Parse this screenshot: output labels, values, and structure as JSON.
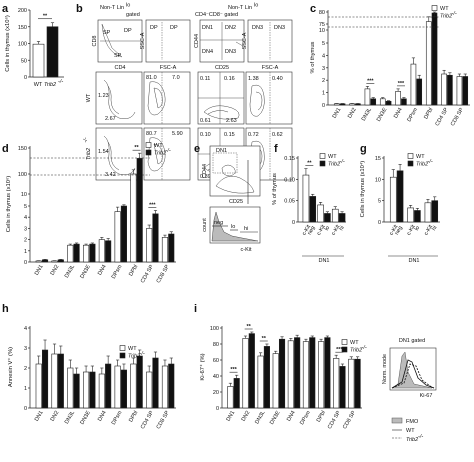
{
  "colors": {
    "wt": "#ffffff",
    "ko": "#111111",
    "edge": "#222222"
  },
  "legend": {
    "wt": "WT",
    "ko": "Trib2",
    "ko_sup": "-/-"
  },
  "chart_data": [
    {
      "id": "a",
      "panel_label": "a",
      "type": "bar",
      "ylabel": "Cells in thymus (x10⁶)",
      "ylim": [
        0,
        200
      ],
      "yticks": [
        "0",
        "50",
        "100",
        "150",
        "200"
      ],
      "categories": [
        "WT",
        "Trib2"
      ],
      "category_sup": [
        "",
        "-/-"
      ],
      "values": [
        98,
        150
      ],
      "errors": [
        8,
        12
      ],
      "sig": [
        "**"
      ]
    },
    {
      "id": "b",
      "panel_label": "b",
      "type": "table",
      "header_left": "Non-T Lin",
      "header_left_sup": "lo",
      "header_left_2": "gated",
      "header_right": "Non-T Lin",
      "header_right_sup": "lo",
      "header_right_2": "CD4⁻CD8⁻ gated",
      "schema_axes": [
        "CD8",
        "CD4",
        "SSC-A",
        "FSC-A",
        "CD44",
        "CD25",
        "SSC-A",
        "FSC-A"
      ],
      "schema_gates": [
        "DP",
        "SP",
        "SP",
        "DP",
        "DN1",
        "DN2",
        "DN4",
        "DN3",
        "DN3",
        "DN3"
      ],
      "row_labels": [
        "WT",
        "Trib2"
      ],
      "row_label_sup": [
        "",
        "-/-"
      ],
      "rows": [
        {
          "cd4cd8": [
            "1.23",
            "2.67"
          ],
          "dp_size": [
            "81.0",
            "7.0"
          ],
          "cd44cd25": [
            "0.11",
            "0.61",
            "0.16",
            "2.63"
          ],
          "dn3_size": [
            "1.38",
            "0.40"
          ]
        },
        {
          "cd4cd8": [
            "1.54",
            "3.42"
          ],
          "dp_size": [
            "80.7",
            "5.90"
          ],
          "cd44cd25": [
            "0.10",
            "0.39",
            "0.15",
            "2.06"
          ],
          "dn3_size": [
            "0.72",
            "0.62"
          ]
        }
      ]
    },
    {
      "id": "c",
      "panel_label": "c",
      "type": "bar",
      "ylabel": "% of thymus",
      "yticks": [
        "0",
        "1",
        "2",
        "3",
        "4",
        "5",
        "10",
        "75",
        "80"
      ],
      "broken_axis": true,
      "categories": [
        "DN1",
        "DN2",
        "DN3L",
        "DN3E",
        "DN4",
        "DPsm",
        "DPbl",
        "CD4 SP",
        "CD8 SP"
      ],
      "series": [
        {
          "name": "WT",
          "values": [
            0.1,
            0.1,
            1.3,
            0.5,
            1.1,
            3.3,
            76,
            2.5,
            2.3
          ],
          "errors": [
            0.02,
            0.02,
            0.2,
            0.1,
            0.2,
            0.5,
            2,
            0.3,
            0.2
          ]
        },
        {
          "name": "Trib2",
          "values": [
            0.1,
            0.1,
            0.5,
            0.3,
            0.5,
            2.1,
            78,
            2.4,
            2.3
          ],
          "errors": [
            0.02,
            0.02,
            0.1,
            0.05,
            0.1,
            0.3,
            2,
            0.2,
            0.2
          ]
        }
      ],
      "sig": [
        {
          "category": "DN3L",
          "label": "***"
        },
        {
          "category": "DN4",
          "label": "***"
        }
      ]
    },
    {
      "id": "d",
      "panel_label": "d",
      "type": "bar",
      "ylabel": "Cells in thymus (x10⁶)",
      "yticks": [
        "0",
        "1",
        "2",
        "3",
        "4",
        "5",
        "10",
        "100",
        "150"
      ],
      "broken_axis": true,
      "categories": [
        "DN1",
        "DN2",
        "DN3L",
        "DN3E",
        "DN4",
        "DPsm",
        "DPbl",
        "CD4 SP",
        "CD8 SP"
      ],
      "series": [
        {
          "name": "WT",
          "values": [
            0.1,
            0.1,
            1.5,
            1.5,
            2.0,
            4.5,
            100,
            3.0,
            2.2
          ],
          "errors": [
            0.02,
            0.02,
            0.1,
            0.1,
            0.2,
            0.4,
            8,
            0.3,
            0.2
          ]
        },
        {
          "name": "Trib2",
          "values": [
            0.2,
            0.2,
            1.6,
            1.6,
            1.9,
            5.0,
            130,
            4.3,
            2.5
          ],
          "errors": [
            0.03,
            0.03,
            0.1,
            0.1,
            0.2,
            0.5,
            10,
            0.3,
            0.2
          ]
        }
      ],
      "sig": [
        {
          "category": "DPbl",
          "label": "**"
        },
        {
          "category": "CD4 SP",
          "label": "***"
        }
      ]
    },
    {
      "id": "e",
      "panel_label": "e",
      "type": "table",
      "gate_label": "DN1",
      "axes": [
        "CD44",
        "CD25",
        "count",
        "c-Kit"
      ],
      "hist_gates": [
        "neg",
        "lo",
        "hi"
      ]
    },
    {
      "id": "f",
      "panel_label": "f",
      "type": "bar",
      "ylabel": "% of thymus",
      "ylim": [
        0,
        0.15
      ],
      "yticks": [
        "0",
        "0.05",
        "0.10",
        "0.15"
      ],
      "categories": [
        "c-Kit",
        "c-Kit",
        "c-Kit"
      ],
      "category_sup": [
        "neg",
        "lo",
        "hi"
      ],
      "group_label": "DN1",
      "series": [
        {
          "name": "WT",
          "values": [
            0.11,
            0.04,
            0.03
          ],
          "errors": [
            0.015,
            0.006,
            0.006
          ]
        },
        {
          "name": "Trib2",
          "values": [
            0.06,
            0.02,
            0.02
          ],
          "errors": [
            0.005,
            0.004,
            0.004
          ]
        }
      ],
      "sig": [
        {
          "category": 0,
          "label": "**"
        }
      ]
    },
    {
      "id": "g",
      "panel_label": "g",
      "type": "bar",
      "ylabel": "Cells in thymus (x10⁴)",
      "ylim": [
        0,
        15
      ],
      "yticks": [
        "0",
        "5",
        "10",
        "15"
      ],
      "categories": [
        "c-Kit",
        "c-Kit",
        "c-Kit"
      ],
      "category_sup": [
        "neg",
        "lo",
        "hi"
      ],
      "group_label": "DN1",
      "series": [
        {
          "name": "WT",
          "values": [
            10.5,
            3.3,
            4.5
          ],
          "errors": [
            1.8,
            0.6,
            0.8
          ]
        },
        {
          "name": "Trib2",
          "values": [
            12.0,
            2.7,
            5.0
          ],
          "errors": [
            1.5,
            0.5,
            0.9
          ]
        }
      ]
    },
    {
      "id": "h",
      "panel_label": "h",
      "type": "bar",
      "ylabel": "Annexin V⁺ (%)",
      "ylim": [
        0,
        4
      ],
      "yticks": [
        "0",
        "1",
        "2",
        "3",
        "4"
      ],
      "categories": [
        "DN1",
        "DN2",
        "DN3L",
        "DN3E",
        "DN4",
        "DPsm",
        "DPbl",
        "CD4 SP",
        "CD8 SP"
      ],
      "series": [
        {
          "name": "WT",
          "values": [
            2.2,
            2.7,
            2.0,
            1.8,
            1.7,
            2.1,
            2.2,
            1.8,
            2.1
          ],
          "errors": [
            0.4,
            0.5,
            0.4,
            0.3,
            0.3,
            0.3,
            0.3,
            0.3,
            0.3
          ]
        },
        {
          "name": "Trib2",
          "values": [
            2.9,
            2.7,
            1.7,
            1.8,
            2.2,
            1.9,
            2.6,
            2.5,
            2.2
          ],
          "errors": [
            0.5,
            0.4,
            0.3,
            0.3,
            0.4,
            0.3,
            0.3,
            0.3,
            0.3
          ]
        }
      ]
    },
    {
      "id": "i",
      "panel_label": "i",
      "type": "bar",
      "ylabel": "Ki-67⁺ (%)",
      "ylim": [
        0,
        100
      ],
      "yticks": [
        "0",
        "20",
        "40",
        "60",
        "80",
        "100"
      ],
      "categories": [
        "DN1",
        "DN2",
        "DN3L",
        "DN3E",
        "DN4",
        "DPsm",
        "DPbl",
        "CD4 SP",
        "CD8 SP"
      ],
      "series": [
        {
          "name": "WT",
          "values": [
            27,
            87,
            65,
            68,
            84,
            83,
            83,
            62,
            61
          ],
          "errors": [
            4,
            3,
            4,
            3,
            3,
            3,
            3,
            4,
            3
          ]
        },
        {
          "name": "Trib2",
          "values": [
            37,
            93,
            77,
            86,
            88,
            88,
            88,
            52,
            61
          ],
          "errors": [
            4,
            2,
            3,
            3,
            3,
            2,
            2,
            3,
            3
          ]
        }
      ],
      "sig": [
        {
          "category": "DN1",
          "label": "***"
        },
        {
          "category": "DN2",
          "label": "**"
        },
        {
          "category": "DN3L",
          "label": "**"
        },
        {
          "category": "CD4 SP",
          "label": "***"
        }
      ]
    },
    {
      "id": "i_hist",
      "type": "line",
      "title": "DN1 gated",
      "ylabel": "Norm. mode",
      "xlabel": "Ki-67",
      "legend": [
        "FMO",
        "WT",
        "Trib2"
      ],
      "legend_sup": [
        "",
        "",
        "-/-"
      ]
    }
  ]
}
